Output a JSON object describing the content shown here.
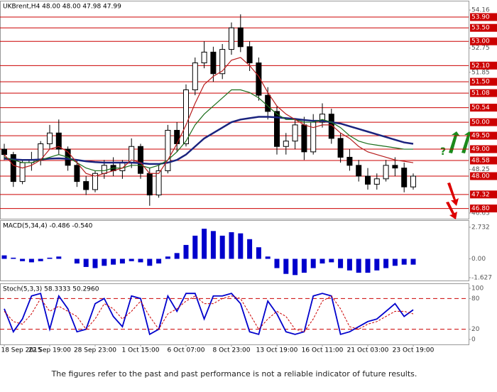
{
  "chart_data": [
    {
      "type": "candlestick",
      "title": "UKBrent,H4  48.00 48.00 47.98 47.99",
      "categories": [
        "18 Sep 2015",
        null,
        null,
        null,
        null,
        "22 Sep 19:00",
        null,
        null,
        null,
        null,
        "28 Sep 23:00",
        null,
        null,
        null,
        null,
        "1 Oct 15:00",
        null,
        null,
        null,
        null,
        "6 Oct 07:00",
        null,
        null,
        null,
        null,
        "8 Oct 23:00",
        null,
        null,
        null,
        null,
        "13 Oct 19:00",
        null,
        null,
        null,
        null,
        "16 Oct 11:00",
        null,
        null,
        null,
        null,
        "21 Oct 03:00",
        null,
        null,
        null,
        null,
        "23 Oct 19:00"
      ],
      "open": [
        49.0,
        48.8,
        47.8,
        48.5,
        48.6,
        49.2,
        49.6,
        49.0,
        48.4,
        47.8,
        47.5,
        48.1,
        48.4,
        48.2,
        48.5,
        49.1,
        48.1,
        47.3,
        48.2,
        49.7,
        49.2,
        51.2,
        52.2,
        52.6,
        51.8,
        52.7,
        53.5,
        52.8,
        52.2,
        51.0,
        50.4,
        49.1,
        49.3,
        49.9,
        48.9,
        50.0,
        50.3,
        49.4,
        48.7,
        48.4,
        48.0,
        47.7,
        47.9,
        48.4,
        48.3,
        47.6
      ],
      "high": [
        49.2,
        48.9,
        48.6,
        48.9,
        49.3,
        49.9,
        50.1,
        49.1,
        48.6,
        48.0,
        48.2,
        48.6,
        48.7,
        48.6,
        49.4,
        49.2,
        48.3,
        48.4,
        49.9,
        50.0,
        51.4,
        52.4,
        53.0,
        52.8,
        52.9,
        53.7,
        54.0,
        53.0,
        52.4,
        51.3,
        50.6,
        49.6,
        50.1,
        50.2,
        50.3,
        50.7,
        50.5,
        49.6,
        49.0,
        48.6,
        48.3,
        48.1,
        48.6,
        48.7,
        48.5,
        48.1
      ],
      "low": [
        48.6,
        47.6,
        47.7,
        48.2,
        48.4,
        49.0,
        48.8,
        48.2,
        47.6,
        47.3,
        47.4,
        47.9,
        48.0,
        47.9,
        48.3,
        47.9,
        46.9,
        47.2,
        48.1,
        48.9,
        49.1,
        51.0,
        52.0,
        51.5,
        51.6,
        52.5,
        52.6,
        51.9,
        50.8,
        50.1,
        48.8,
        48.8,
        49.0,
        48.6,
        48.8,
        49.8,
        49.2,
        48.5,
        48.2,
        47.8,
        47.5,
        47.5,
        47.8,
        48.0,
        47.4,
        47.5
      ],
      "close": [
        48.8,
        47.8,
        48.5,
        48.6,
        49.2,
        49.6,
        49.0,
        48.4,
        47.8,
        47.5,
        48.1,
        48.4,
        48.2,
        48.5,
        49.1,
        48.1,
        47.3,
        48.2,
        49.7,
        49.2,
        51.2,
        52.2,
        52.6,
        51.8,
        52.7,
        53.5,
        52.8,
        52.2,
        51.0,
        50.4,
        49.1,
        49.3,
        49.9,
        48.9,
        50.0,
        50.3,
        49.4,
        48.7,
        48.4,
        48.0,
        47.7,
        47.9,
        48.4,
        48.3,
        47.6,
        48.0
      ],
      "color": "#000000",
      "series": [
        {
          "color": "#1a237e",
          "values": [
            48.65,
            48.62,
            48.6,
            48.6,
            48.62,
            48.65,
            48.66,
            48.64,
            48.6,
            48.55,
            48.52,
            48.5,
            48.5,
            48.5,
            48.5,
            48.48,
            48.45,
            48.45,
            48.5,
            48.6,
            48.8,
            49.1,
            49.4,
            49.6,
            49.8,
            50.0,
            50.1,
            50.15,
            50.2,
            50.2,
            50.18,
            50.15,
            50.12,
            50.08,
            50.05,
            50.05,
            50.0,
            49.95,
            49.85,
            49.75,
            49.65,
            49.55,
            49.45,
            49.35,
            49.25,
            49.2
          ]
        },
        {
          "color": "#1b6e1b",
          "values": [
            48.7,
            48.6,
            48.5,
            48.5,
            48.6,
            48.7,
            48.8,
            48.7,
            48.5,
            48.3,
            48.2,
            48.2,
            48.3,
            48.3,
            48.4,
            48.4,
            48.3,
            48.4,
            48.6,
            48.9,
            49.3,
            49.9,
            50.3,
            50.6,
            50.9,
            51.2,
            51.2,
            51.1,
            50.9,
            50.6,
            50.3,
            50.1,
            50.1,
            50.0,
            50.0,
            50.1,
            50.0,
            49.8,
            49.5,
            49.3,
            49.2,
            49.15,
            49.1,
            49.05,
            49.0,
            49.0
          ]
        },
        {
          "color": "#b71c1c",
          "values": [
            48.8,
            48.4,
            48.3,
            48.4,
            48.6,
            49.0,
            49.1,
            48.9,
            48.5,
            48.1,
            48.0,
            48.1,
            48.2,
            48.3,
            48.6,
            48.5,
            48.1,
            48.1,
            48.6,
            49.2,
            49.9,
            50.7,
            51.4,
            51.7,
            51.9,
            52.3,
            52.4,
            52.1,
            51.7,
            51.1,
            50.6,
            50.3,
            50.1,
            49.9,
            49.8,
            49.9,
            49.9,
            49.6,
            49.4,
            49.1,
            48.9,
            48.8,
            48.7,
            48.6,
            48.55,
            48.5
          ]
        }
      ],
      "levels": [
        {
          "value": 53.9,
          "label": "53.90"
        },
        {
          "value": 53.5,
          "label": "53.50"
        },
        {
          "value": 53,
          "label": "53.00"
        },
        {
          "value": 52.1,
          "label": "52.10"
        },
        {
          "value": 51.5,
          "label": "51.50"
        },
        51.08,
        50.54,
        {
          "value": 50,
          "label": "50.00"
        },
        {
          "value": 49.5,
          "label": "49.50"
        },
        {
          "value": 49,
          "label": "49.00"
        },
        48.58,
        {
          "value": 48,
          "label": "48.00"
        },
        47.32,
        {
          "value": 46.8,
          "label": "46.80"
        }
      ],
      "level_color": "#cc0000",
      "ylim": [
        46.42,
        54.48
      ],
      "yticks": [
        54.16,
        52.75,
        51.85,
        48.25,
        46.63
      ]
    },
    {
      "type": "bar",
      "title": "MACD(5,34,4) -0.486 -0.540",
      "color": "#0000cc",
      "values": [
        0.3,
        0.1,
        -0.2,
        -0.3,
        -0.2,
        0.1,
        0.2,
        0.0,
        -0.4,
        -0.7,
        -0.8,
        -0.6,
        -0.5,
        -0.4,
        -0.2,
        -0.3,
        -0.6,
        -0.4,
        0.2,
        0.5,
        1.2,
        2.0,
        2.6,
        2.4,
        2.0,
        2.3,
        2.2,
        1.7,
        1.0,
        0.2,
        -0.8,
        -1.3,
        -1.4,
        -1.2,
        -0.8,
        -0.4,
        -0.3,
        -0.8,
        -1.0,
        -1.2,
        -1.2,
        -1.0,
        -0.8,
        -0.6,
        -0.5,
        -0.5
      ],
      "ylim": [
        -1.87,
        3.28
      ],
      "yticks": [
        2.732,
        {
          "value": 0,
          "label": "0.00"
        },
        -1.627
      ]
    },
    {
      "type": "line",
      "title": "Stoch(5,3,3) 58.3333 50.2960",
      "series": [
        {
          "color": "#0000cc",
          "values": [
            60,
            15,
            40,
            85,
            90,
            20,
            85,
            60,
            15,
            20,
            70,
            80,
            45,
            25,
            85,
            80,
            10,
            20,
            85,
            55,
            90,
            90,
            40,
            85,
            85,
            90,
            70,
            15,
            10,
            75,
            50,
            15,
            10,
            15,
            85,
            90,
            85,
            10,
            15,
            25,
            35,
            40,
            55,
            70,
            45,
            58
          ]
        },
        {
          "color": "#cc0000",
          "values": [
            55,
            35,
            30,
            50,
            80,
            55,
            65,
            55,
            45,
            20,
            40,
            70,
            60,
            40,
            55,
            75,
            45,
            20,
            50,
            60,
            75,
            85,
            70,
            70,
            80,
            85,
            80,
            50,
            20,
            40,
            55,
            45,
            20,
            15,
            40,
            75,
            85,
            60,
            25,
            20,
            30,
            35,
            45,
            55,
            55,
            50
          ]
        }
      ],
      "levels": [
        80,
        20
      ],
      "ylim": [
        -9.7,
        108.3
      ],
      "yticks": [
        100,
        80,
        20,
        0
      ]
    }
  ],
  "footer": "The figures refer to the past and past performance is not a reliable indicator of future results."
}
